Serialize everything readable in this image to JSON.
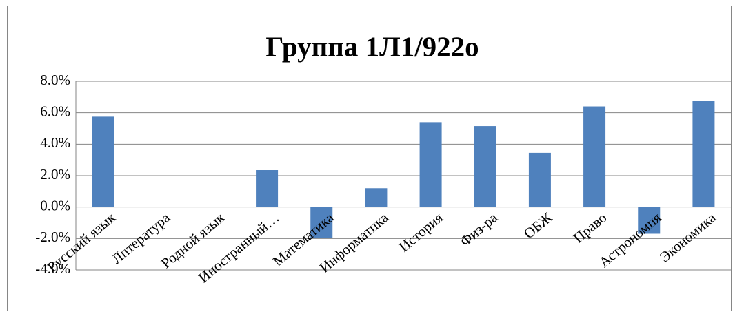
{
  "chart_data": {
    "type": "bar",
    "title": "Группа 1Л1/922о",
    "categories": [
      "Русский язык",
      "Литература",
      "Родной язык",
      "Иностранный…",
      "Математика",
      "Информатика",
      "История",
      "Физ-ра",
      "ОБЖ",
      "Право",
      "Астрономия",
      "Экономика"
    ],
    "values": [
      5.75,
      0,
      0,
      2.35,
      -1.95,
      1.2,
      5.4,
      5.15,
      3.45,
      6.4,
      -1.7,
      6.75
    ],
    "color": "#4f81bd",
    "ylim": [
      -4,
      8
    ],
    "yticks": [
      {
        "value": -4,
        "label": "-4.0%"
      },
      {
        "value": -2,
        "label": "-2.0%"
      },
      {
        "value": 0,
        "label": "0.0%"
      },
      {
        "value": 2,
        "label": "2.0%"
      },
      {
        "value": 4,
        "label": "4.0%"
      },
      {
        "value": 6,
        "label": "6.0%"
      },
      {
        "value": 8,
        "label": "8.0%"
      }
    ],
    "grid": true
  }
}
